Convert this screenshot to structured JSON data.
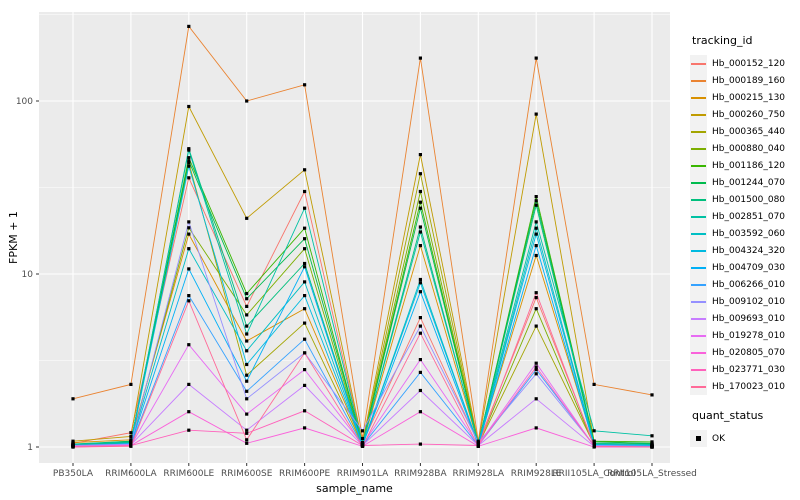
{
  "chart_data": {
    "type": "line",
    "title": "",
    "xlabel": "sample_name",
    "ylabel": "FPKM + 1",
    "y_scale": "log10",
    "ylim": [
      0.85,
      355
    ],
    "y_ticks": [
      1,
      10,
      100
    ],
    "grid": true,
    "legend_position": "right",
    "legend_title": "tracking_id",
    "legend2_title": "quant_status",
    "legend2_items": [
      {
        "label": "OK",
        "marker": "square",
        "color": "#000000"
      }
    ],
    "point_marker": "square",
    "point_color": "#000000",
    "panel_bg": "#EBEBEB",
    "grid_color": "#FFFFFF",
    "tick_text_color": "#4D4D4D",
    "tick_mark_color": "#333333",
    "categories": [
      "PB350LA",
      "RRIM600LA",
      "RRIM600LE",
      "RRIM600SE",
      "RRIM600PE",
      "RRIM901LA",
      "RRIM928BA",
      "RRIM928LA",
      "RRIM928LE",
      "RRII105LA_Control",
      "RRII105LA_Stressed"
    ],
    "series": [
      {
        "name": "Hb_000152_120",
        "color": "#F8766D",
        "values": [
          1.05,
          1.21,
          36,
          6.5,
          30,
          1.05,
          5.6,
          1.05,
          7.3,
          1.03,
          1.02
        ]
      },
      {
        "name": "Hb_000189_160",
        "color": "#EA8331",
        "values": [
          1.9,
          2.3,
          270,
          100,
          124,
          1.12,
          177,
          1.08,
          177,
          2.3,
          2.0
        ]
      },
      {
        "name": "Hb_000215_130",
        "color": "#D89000",
        "values": [
          1.06,
          1.1,
          17,
          4.1,
          6.3,
          1.04,
          14.6,
          1.04,
          12.8,
          1.04,
          1.02
        ]
      },
      {
        "name": "Hb_000260_750",
        "color": "#C09B00",
        "values": [
          1.08,
          1.15,
          93,
          21,
          40,
          1.06,
          49,
          1.05,
          84,
          1.08,
          1.04
        ]
      },
      {
        "name": "Hb_000365_440",
        "color": "#A3A500",
        "values": [
          1.03,
          1.08,
          44,
          2.6,
          5.2,
          1.03,
          38,
          1.03,
          5.0,
          1.03,
          1.01
        ]
      },
      {
        "name": "Hb_000880_040",
        "color": "#7CAE00",
        "values": [
          1.02,
          1.06,
          18.5,
          5.8,
          14,
          1.03,
          30,
          1.03,
          6.3,
          1.02,
          1.01
        ]
      },
      {
        "name": "Hb_001186_120",
        "color": "#39B600",
        "values": [
          1.03,
          1.07,
          47,
          7.7,
          18.4,
          1.04,
          26,
          1.04,
          28,
          1.08,
          1.07
        ]
      },
      {
        "name": "Hb_001244_070",
        "color": "#00BB4E",
        "values": [
          1.04,
          1.08,
          45,
          7.2,
          16,
          1.05,
          24,
          1.05,
          26.5,
          1.07,
          1.05
        ]
      },
      {
        "name": "Hb_001500_080",
        "color": "#00BF7D",
        "values": [
          1.03,
          1.06,
          53,
          5.0,
          11.5,
          1.04,
          18.7,
          1.04,
          25,
          1.05,
          1.04
        ]
      },
      {
        "name": "Hb_002851_070",
        "color": "#00C1A3",
        "values": [
          1.04,
          1.07,
          52,
          4.5,
          24,
          1.05,
          17.5,
          1.06,
          20,
          1.24,
          1.16
        ]
      },
      {
        "name": "Hb_003592_060",
        "color": "#00BFC4",
        "values": [
          1.02,
          1.05,
          14,
          3.6,
          9.0,
          1.03,
          9.3,
          1.03,
          18.4,
          1.04,
          1.03
        ]
      },
      {
        "name": "Hb_004324_320",
        "color": "#00BAE0",
        "values": [
          1.02,
          1.05,
          42,
          3.0,
          7.5,
          1.03,
          8.9,
          1.03,
          17,
          1.03,
          1.02
        ]
      },
      {
        "name": "Hb_004709_030",
        "color": "#00B0F6",
        "values": [
          1.02,
          1.04,
          10.7,
          2.4,
          11,
          1.02,
          7.9,
          1.02,
          14.6,
          1.02,
          1.01
        ]
      },
      {
        "name": "Hb_006266_010",
        "color": "#35A2FF",
        "values": [
          1.01,
          1.03,
          7.5,
          2.1,
          4.2,
          1.02,
          2.7,
          1.02,
          2.8,
          1.02,
          1.01
        ]
      },
      {
        "name": "Hb_009102_010",
        "color": "#9590FF",
        "values": [
          1.02,
          1.04,
          20,
          1.9,
          3.5,
          1.24,
          5.0,
          1.06,
          2.65,
          1.02,
          1.01
        ]
      },
      {
        "name": "Hb_009693_010",
        "color": "#C77CFF",
        "values": [
          1.01,
          1.03,
          2.3,
          1.25,
          2.27,
          1.02,
          2.12,
          1.02,
          1.9,
          1.01,
          1.0
        ]
      },
      {
        "name": "Hb_019278_010",
        "color": "#E76BF3",
        "values": [
          1.01,
          1.02,
          3.9,
          1.55,
          2.8,
          1.03,
          3.2,
          1.03,
          3.05,
          1.01,
          1.0
        ]
      },
      {
        "name": "Hb_020805_070",
        "color": "#FA62DB",
        "values": [
          1.0,
          1.02,
          1.6,
          1.05,
          1.29,
          1.01,
          1.6,
          1.01,
          1.29,
          1.0,
          1.0
        ]
      },
      {
        "name": "Hb_023771_030",
        "color": "#FF62BC",
        "values": [
          1.01,
          1.02,
          1.25,
          1.2,
          1.62,
          1.02,
          1.04,
          1.02,
          2.9,
          1.01,
          1.0
        ]
      },
      {
        "name": "Hb_170023_010",
        "color": "#FF6A98",
        "values": [
          1.0,
          1.01,
          7.0,
          1.1,
          3.5,
          1.01,
          4.55,
          1.01,
          7.8,
          1.01,
          1.0
        ]
      }
    ]
  }
}
